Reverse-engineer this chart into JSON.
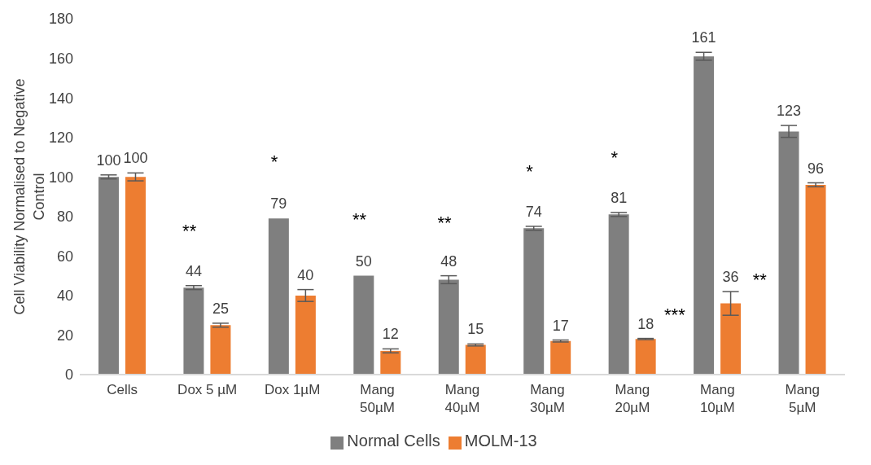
{
  "chart_data": {
    "type": "bar",
    "ylabel": "Cell Viability Normalised to Negative Control",
    "categories": [
      "Cells",
      "Dox 5 µM",
      "Dox 1µM",
      "Mang 50µM",
      "Mang 40µM",
      "Mang 30µM",
      "Mang 20µM",
      "Mang 10µM",
      "Mang 5µM"
    ],
    "series": [
      {
        "name": "Normal Cells",
        "color": "#7f7f7f",
        "values": [
          100,
          44,
          79,
          50,
          48,
          74,
          81,
          161,
          123
        ],
        "errors": [
          1,
          1,
          null,
          null,
          2,
          1,
          1,
          2,
          3
        ]
      },
      {
        "name": "MOLM-13",
        "color": "#ed7d31",
        "values": [
          100,
          25,
          40,
          12,
          15,
          17,
          18,
          36,
          96
        ],
        "errors": [
          2,
          1,
          3,
          1,
          0.5,
          0.5,
          0.3,
          6,
          1
        ]
      }
    ],
    "ylim": [
      0,
      180
    ],
    "yticks": [
      0,
      20,
      40,
      60,
      80,
      100,
      120,
      140,
      160,
      180
    ],
    "grid": false,
    "legend": "bottom",
    "data_labels": true,
    "annotations": [
      {
        "text": "**",
        "x": "Dox 5 µM",
        "y": 44
      },
      {
        "text": "*",
        "x": "Dox 1µM",
        "y": 79
      },
      {
        "text": "**",
        "x": "Mang 50µM",
        "y": 50
      },
      {
        "text": "**",
        "x": "Mang 40µM",
        "y": 48
      },
      {
        "text": "*",
        "x": "Mang 30µM",
        "y": 74
      },
      {
        "text": "*",
        "x": "Mang 20µM",
        "y": 81
      },
      {
        "text": "***",
        "x": "Mang 20µM",
        "y": 18
      },
      {
        "text": "**",
        "x": "Mang 10µM",
        "y": 36
      }
    ]
  }
}
